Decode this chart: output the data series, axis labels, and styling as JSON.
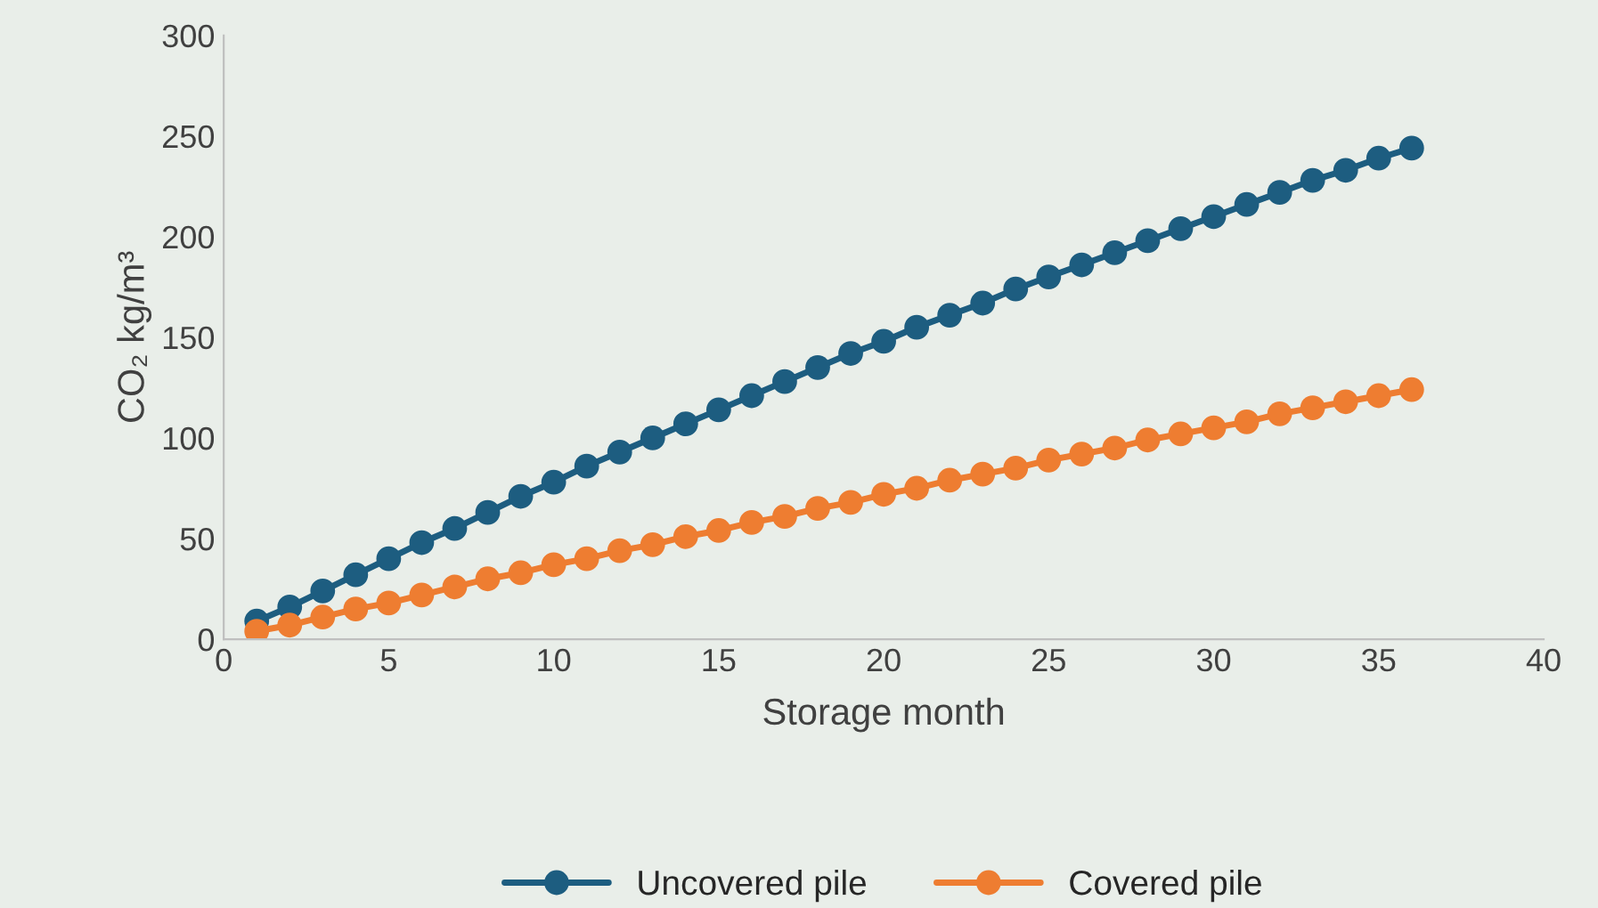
{
  "chart_data": {
    "type": "line",
    "xlabel": "Storage month",
    "ylabel": "CO₂ kg/m³",
    "x": [
      1,
      2,
      3,
      4,
      5,
      6,
      7,
      8,
      9,
      10,
      11,
      12,
      13,
      14,
      15,
      16,
      17,
      18,
      19,
      20,
      21,
      22,
      23,
      24,
      25,
      26,
      27,
      28,
      29,
      30,
      31,
      32,
      33,
      34,
      35,
      36
    ],
    "series": [
      {
        "name": "Uncovered pile",
        "color": "#1d5d80",
        "values": [
          9,
          16,
          24,
          32,
          40,
          48,
          55,
          63,
          71,
          78,
          86,
          93,
          100,
          107,
          114,
          121,
          128,
          135,
          142,
          148,
          155,
          161,
          167,
          174,
          180,
          186,
          192,
          198,
          204,
          210,
          216,
          222,
          228,
          233,
          239,
          244
        ]
      },
      {
        "name": "Covered pile",
        "color": "#ee7d31",
        "values": [
          4,
          7,
          11,
          15,
          18,
          22,
          26,
          30,
          33,
          37,
          40,
          44,
          47,
          51,
          54,
          58,
          61,
          65,
          68,
          72,
          75,
          79,
          82,
          85,
          89,
          92,
          95,
          99,
          102,
          105,
          108,
          112,
          115,
          118,
          121,
          124
        ]
      }
    ],
    "xlim": [
      0,
      40
    ],
    "xticks": [
      0,
      5,
      10,
      15,
      20,
      25,
      30,
      35,
      40
    ],
    "ylim": [
      0,
      300
    ],
    "yticks": [
      0,
      50,
      100,
      150,
      200,
      250,
      300
    ],
    "grid": false,
    "legend": "bottom",
    "marker": "circle",
    "line_style": "solid"
  }
}
